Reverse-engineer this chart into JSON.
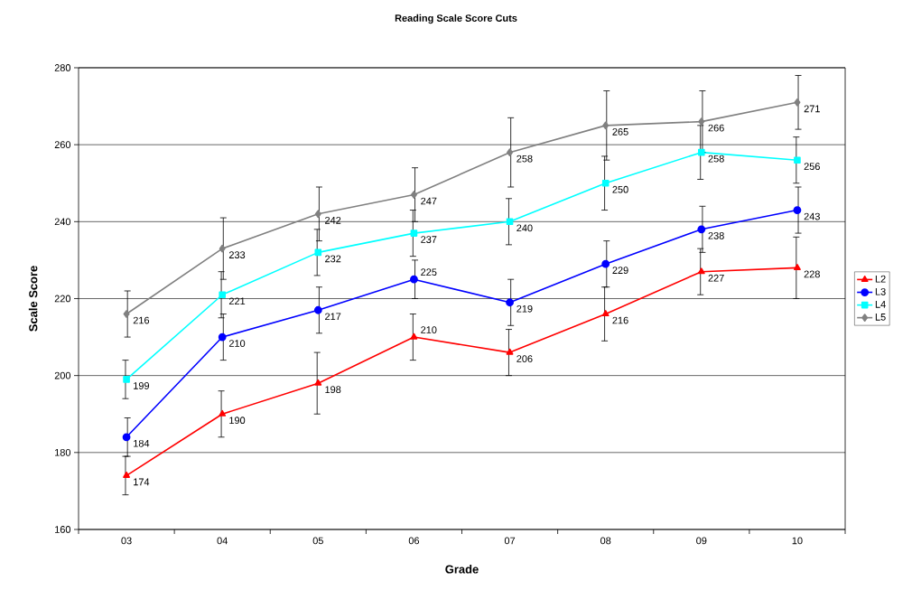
{
  "chart_data": {
    "type": "line",
    "title": "Reading Scale Score Cuts",
    "xlabel": "Grade",
    "ylabel": "Scale Score",
    "categories": [
      "03",
      "04",
      "05",
      "06",
      "07",
      "08",
      "09",
      "10"
    ],
    "ylim": [
      160,
      280
    ],
    "yticks": [
      160,
      180,
      200,
      220,
      240,
      260,
      280
    ],
    "grid": "y",
    "legend": "right",
    "line_style": "solid",
    "series": [
      {
        "name": "L2",
        "color": "#ff0000",
        "marker": "triangle",
        "values": [
          174,
          190,
          198,
          210,
          206,
          216,
          227,
          228
        ],
        "errors": [
          5,
          6,
          8,
          6,
          6,
          7,
          6,
          8
        ],
        "value_labels": [
          "174",
          "190",
          "198",
          "210",
          "206",
          "216",
          "227",
          "228"
        ]
      },
      {
        "name": "L3",
        "color": "#0000ff",
        "marker": "circle",
        "values": [
          184,
          210,
          217,
          225,
          219,
          229,
          238,
          243
        ],
        "errors": [
          5,
          6,
          6,
          5,
          6,
          6,
          6,
          6
        ],
        "value_labels": [
          "184",
          "210",
          "217",
          "225",
          "219",
          "229",
          "238",
          "243"
        ]
      },
      {
        "name": "L4",
        "color": "#00ffff",
        "marker": "square",
        "values": [
          199,
          221,
          232,
          237,
          240,
          250,
          258,
          256
        ],
        "errors": [
          5,
          6,
          6,
          6,
          6,
          7,
          7,
          6
        ],
        "value_labels": [
          "199",
          "221",
          "232",
          "237",
          "240",
          "250",
          "258",
          "256"
        ]
      },
      {
        "name": "L5",
        "color": "#808080",
        "marker": "diamond",
        "values": [
          216,
          233,
          242,
          247,
          258,
          265,
          266,
          271
        ],
        "errors": [
          6,
          8,
          7,
          7,
          9,
          9,
          8,
          7
        ],
        "value_labels": [
          "216",
          "233",
          "242",
          "247",
          "258",
          "265",
          "266",
          "271"
        ]
      }
    ]
  }
}
